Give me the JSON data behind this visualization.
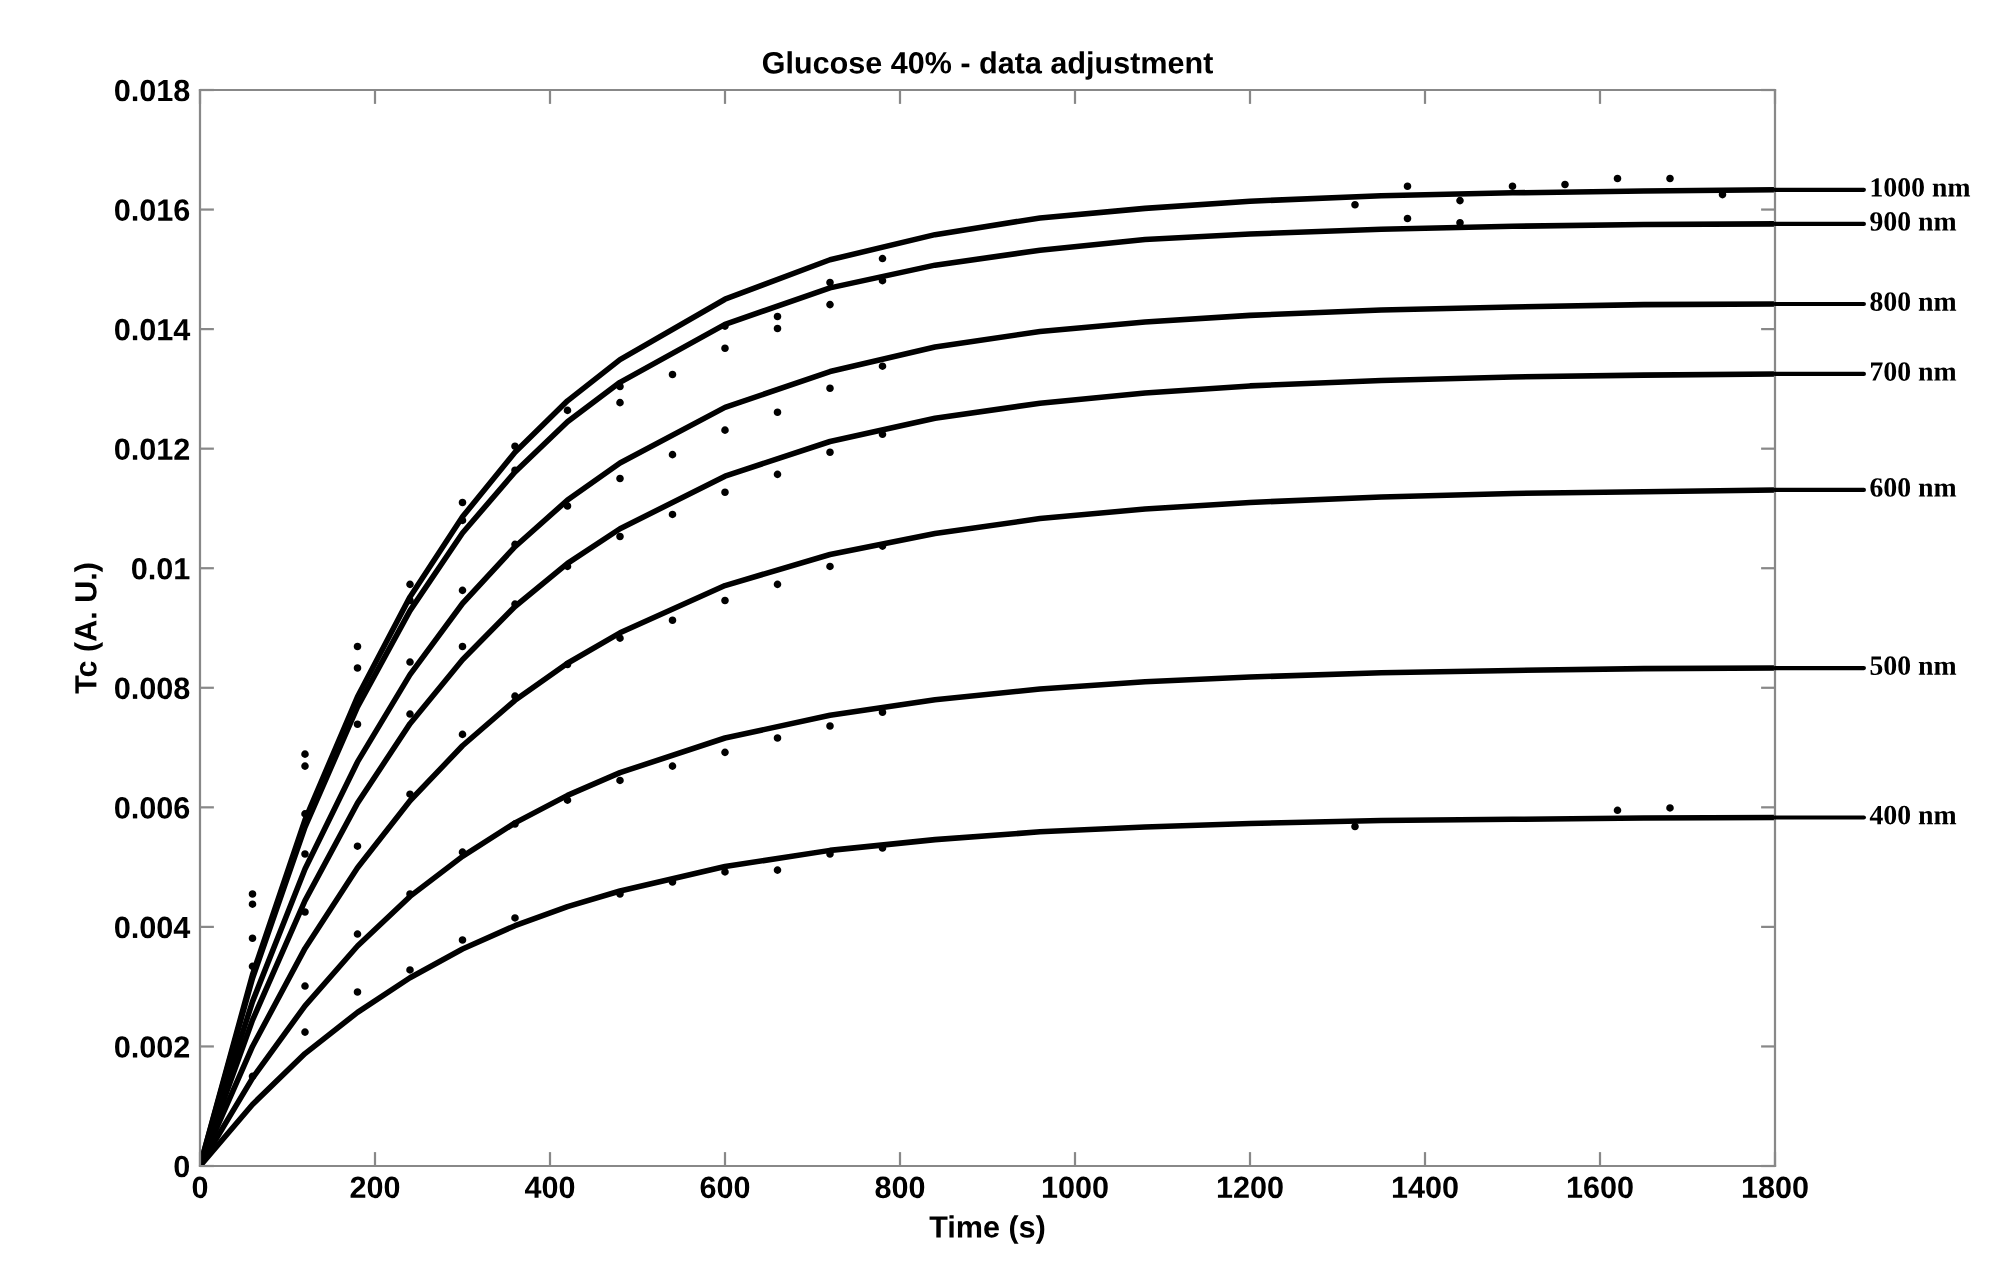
{
  "chart_data": {
    "type": "line",
    "title": "Glucose 40% - data adjustment",
    "xlabel": "Time (s)",
    "ylabel": "Tc (A. U.)",
    "xlim": [
      0,
      1800
    ],
    "ylim": [
      0,
      0.018
    ],
    "xticks": [
      0,
      200,
      400,
      600,
      800,
      1000,
      1200,
      1400,
      1600,
      1800
    ],
    "yticks": [
      0,
      0.002,
      0.004,
      0.006,
      0.008,
      0.01,
      0.012,
      0.014,
      0.016,
      0.018
    ],
    "grid": false,
    "legend": "right",
    "line_style": "solid",
    "x": [
      0,
      60,
      120,
      180,
      240,
      300,
      360,
      420,
      480,
      600,
      720,
      840,
      960,
      1080,
      1200,
      1350,
      1500,
      1650,
      1800
    ],
    "series": [
      {
        "name": "1000 nm",
        "color": "#000000",
        "marker": "none",
        "values": [
          0,
          0.0032,
          0.00579,
          0.00785,
          0.00952,
          0.01086,
          0.01194,
          0.0128,
          0.01349,
          0.0145,
          0.01516,
          0.01558,
          0.01586,
          0.01602,
          0.01614,
          0.01623,
          0.01628,
          0.01631,
          0.01633
        ]
      },
      {
        "name": "900 nm",
        "color": "#000000",
        "marker": "none",
        "values": [
          0,
          0.00314,
          0.00567,
          0.00768,
          0.00929,
          0.01059,
          0.01161,
          0.01245,
          0.01311,
          0.01408,
          0.01469,
          0.01507,
          0.01532,
          0.0155,
          0.01559,
          0.01567,
          0.01572,
          0.01575,
          0.01576
        ]
      },
      {
        "name": "800 nm",
        "color": "#000000",
        "marker": "none",
        "values": [
          0,
          0.00275,
          0.00497,
          0.00676,
          0.00822,
          0.00941,
          0.01036,
          0.01114,
          0.01176,
          0.01269,
          0.01329,
          0.0137,
          0.01396,
          0.01412,
          0.01423,
          0.01432,
          0.01437,
          0.01441,
          0.01442
        ]
      },
      {
        "name": "700 nm",
        "color": "#000000",
        "marker": "none",
        "values": [
          0,
          0.00244,
          0.00444,
          0.00607,
          0.0074,
          0.00847,
          0.00936,
          0.01008,
          0.01066,
          0.01154,
          0.01212,
          0.01251,
          0.01276,
          0.01293,
          0.01305,
          0.01314,
          0.0132,
          0.01323,
          0.01325
        ]
      },
      {
        "name": "600 nm",
        "color": "#000000",
        "marker": "none",
        "values": [
          0,
          0.002,
          0.00364,
          0.00499,
          0.00611,
          0.00703,
          0.00779,
          0.00841,
          0.00892,
          0.00971,
          0.01023,
          0.01058,
          0.01083,
          0.01099,
          0.0111,
          0.01119,
          0.01125,
          0.01128,
          0.01131
        ]
      },
      {
        "name": "500 nm",
        "color": "#000000",
        "marker": "none",
        "values": [
          0,
          0.00147,
          0.00268,
          0.00368,
          0.00451,
          0.00518,
          0.00574,
          0.0062,
          0.00658,
          0.00716,
          0.00754,
          0.0078,
          0.00798,
          0.0081,
          0.00818,
          0.00825,
          0.00829,
          0.00832,
          0.00833
        ]
      },
      {
        "name": "400 nm",
        "color": "#000000",
        "marker": "none",
        "values": [
          0,
          0.00103,
          0.00188,
          0.00257,
          0.00315,
          0.00363,
          0.00402,
          0.00434,
          0.0046,
          0.00501,
          0.00528,
          0.00546,
          0.00559,
          0.00567,
          0.00573,
          0.00578,
          0.0058,
          0.00582,
          0.00583
        ]
      },
      {
        "type": "scatter",
        "color": "#000000",
        "marker": "circle",
        "x": [
          60,
          60,
          60,
          60,
          60,
          120,
          120,
          120,
          120,
          120,
          120,
          120,
          180,
          180,
          180,
          180,
          180,
          180,
          240,
          240,
          240,
          240,
          240,
          240,
          240,
          300,
          300,
          300,
          300,
          300,
          300,
          300,
          360,
          360,
          360,
          360,
          360,
          360,
          360,
          420,
          420,
          420,
          420,
          420,
          480,
          480,
          480,
          480,
          480,
          480,
          480,
          540,
          540,
          540,
          540,
          540,
          540,
          600,
          600,
          600,
          600,
          600,
          600,
          600,
          660,
          660,
          660,
          660,
          660,
          660,
          660,
          720,
          720,
          720,
          720,
          720,
          720,
          720,
          780,
          780,
          780,
          780,
          780,
          780,
          780,
          1320,
          1380,
          1440,
          1500,
          1560,
          1620,
          1680,
          1740,
          1380,
          1440,
          1320,
          1620,
          1680
        ],
        "values": [
          0.00455,
          0.00438,
          0.00381,
          0.00334,
          0.0015,
          0.00689,
          0.00669,
          0.00589,
          0.00522,
          0.00425,
          0.00301,
          0.00224,
          0.00869,
          0.00833,
          0.00739,
          0.00535,
          0.00388,
          0.00291,
          0.00973,
          0.00946,
          0.00843,
          0.00756,
          0.00622,
          0.00455,
          0.00328,
          0.0111,
          0.0108,
          0.00963,
          0.00869,
          0.00722,
          0.00525,
          0.00378,
          0.01204,
          0.01164,
          0.0104,
          0.0094,
          0.00786,
          0.00572,
          0.00415,
          0.01264,
          0.01104,
          0.01003,
          0.00839,
          0.00612,
          0.01304,
          0.01277,
          0.0115,
          0.01053,
          0.00883,
          0.00645,
          0.00455,
          0.01324,
          0.0119,
          0.0109,
          0.00913,
          0.00669,
          0.00475,
          0.01405,
          0.01368,
          0.01231,
          0.01127,
          0.00946,
          0.00692,
          0.00492,
          0.01421,
          0.01401,
          0.01261,
          0.01157,
          0.00973,
          0.00716,
          0.00495,
          0.01478,
          0.01441,
          0.01301,
          0.01194,
          0.01003,
          0.00736,
          0.00522,
          0.01518,
          0.01481,
          0.01338,
          0.01224,
          0.01037,
          0.00759,
          0.00532,
          0.01608,
          0.01639,
          0.01615,
          0.01639,
          0.01642,
          0.01652,
          0.01652,
          0.01625,
          0.01585,
          0.01578,
          0.00568,
          0.00595,
          0.00599
        ]
      }
    ]
  }
}
